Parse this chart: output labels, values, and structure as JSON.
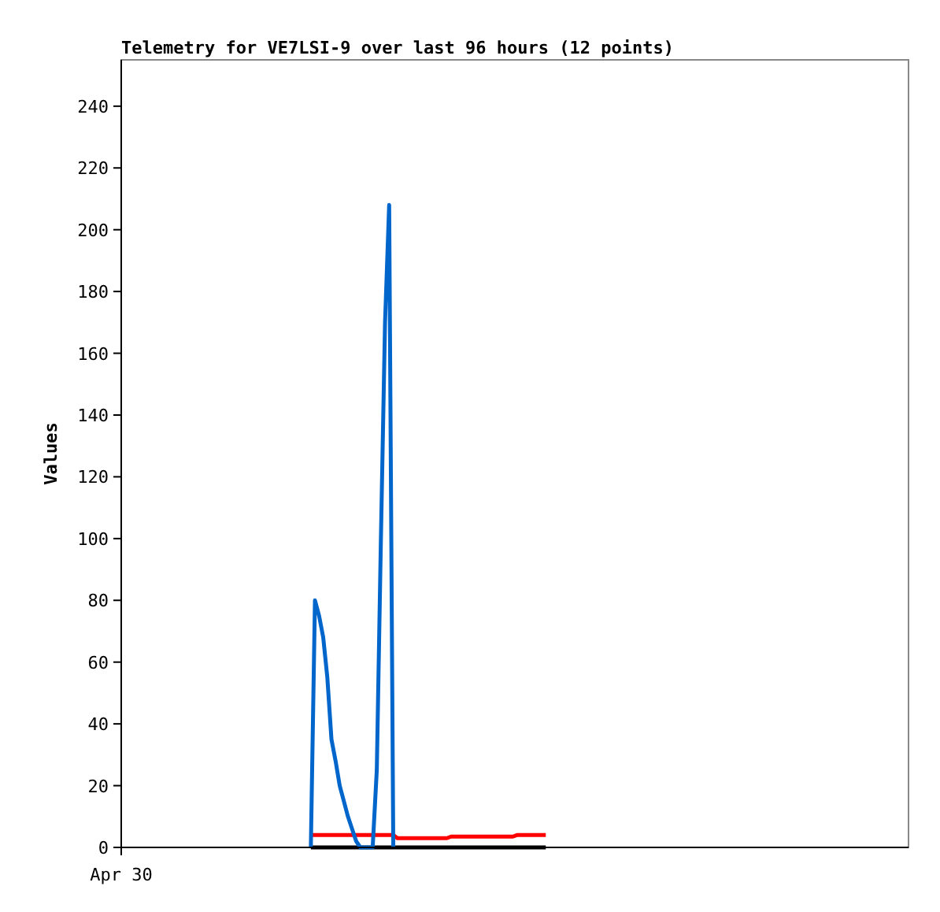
{
  "chart_data": {
    "type": "line",
    "title": "Telemetry for VE7LSI-9 over last 96 hours (12 points)",
    "ylabel": "Values",
    "categories": [
      "Apr 30",
      null,
      null,
      null,
      null,
      null,
      null,
      null,
      null,
      null,
      null,
      null,
      null,
      null,
      null,
      null,
      null,
      null,
      null,
      null,
      null,
      null,
      null,
      null,
      null,
      null,
      null,
      null,
      null,
      null,
      null,
      null,
      null,
      null,
      null,
      null,
      null,
      null,
      null,
      null,
      null,
      null,
      null,
      null,
      null,
      null,
      null,
      null,
      null,
      null,
      null,
      null,
      null,
      null,
      null,
      null,
      null,
      null,
      null,
      null,
      null,
      null,
      null,
      null,
      null,
      null,
      null,
      null,
      null,
      null,
      null,
      null,
      null,
      null,
      null,
      null,
      null,
      null,
      null,
      null,
      null,
      null,
      null,
      null,
      null,
      null,
      null,
      null,
      null,
      null,
      null,
      null,
      null,
      null,
      null,
      null,
      null,
      null,
      null,
      null,
      null,
      null,
      null,
      null,
      null,
      null,
      null,
      null,
      null,
      null,
      null,
      null,
      null,
      null,
      null,
      null,
      null,
      null,
      null,
      null,
      null,
      null,
      null,
      null,
      null,
      null,
      null,
      null,
      null,
      null,
      null,
      null,
      null,
      null,
      null,
      null,
      null,
      null,
      null,
      null,
      null,
      null,
      null,
      null,
      null,
      null,
      null,
      null,
      null,
      null,
      null,
      null,
      null,
      null,
      null,
      null,
      null,
      null,
      null,
      null,
      null,
      null,
      null,
      null,
      null,
      null,
      null,
      null,
      null,
      null,
      null,
      null,
      null,
      null,
      null,
      null,
      null,
      null,
      null,
      null,
      null,
      null,
      null,
      null,
      null,
      null,
      null,
      null,
      null,
      null,
      null,
      null
    ],
    "ylim": [
      0,
      255
    ],
    "yticks": [
      0,
      20,
      40,
      60,
      80,
      100,
      120,
      140,
      160,
      180,
      200,
      220,
      240
    ],
    "grid": false,
    "series": [
      {
        "color": "#000000",
        "values": [
          null,
          null,
          null,
          null,
          null,
          null,
          null,
          null,
          null,
          null,
          null,
          null,
          null,
          null,
          null,
          null,
          null,
          null,
          null,
          null,
          null,
          null,
          null,
          null,
          null,
          null,
          null,
          null,
          null,
          null,
          null,
          null,
          null,
          null,
          null,
          null,
          null,
          null,
          null,
          null,
          null,
          null,
          null,
          null,
          null,
          null,
          0,
          0,
          0,
          0,
          0,
          0,
          0,
          0,
          0,
          0,
          0,
          0,
          0,
          0,
          0,
          0,
          0,
          0,
          0,
          0,
          0,
          0,
          0,
          0,
          0,
          0,
          0,
          0,
          0,
          0,
          0,
          0,
          0,
          0,
          0,
          0,
          0,
          0,
          0,
          0,
          0,
          0,
          0,
          0,
          0,
          0,
          0,
          0,
          0,
          0,
          0,
          0,
          0,
          0,
          0,
          0,
          0,
          0,
          null,
          null,
          null,
          null,
          null,
          null,
          null,
          null,
          null,
          null,
          null,
          null,
          null,
          null,
          null,
          null,
          null,
          null,
          null,
          null,
          null,
          null,
          null,
          null,
          null,
          null,
          null,
          null,
          null,
          null,
          null,
          null,
          null,
          null,
          null,
          null,
          null,
          null,
          null,
          null,
          null,
          null,
          null,
          null,
          null,
          null,
          null,
          null,
          null,
          null,
          null,
          null,
          null,
          null,
          null,
          null,
          null,
          null,
          null,
          null,
          null,
          null,
          null,
          null,
          null,
          null,
          null,
          null,
          null,
          null,
          null,
          null,
          null,
          null,
          null,
          null,
          null,
          null,
          null,
          null,
          null,
          null,
          null,
          null,
          null,
          null,
          null,
          null
        ]
      },
      {
        "color": "#ff0000",
        "values": [
          null,
          null,
          null,
          null,
          null,
          null,
          null,
          null,
          null,
          null,
          null,
          null,
          null,
          null,
          null,
          null,
          null,
          null,
          null,
          null,
          null,
          null,
          null,
          null,
          null,
          null,
          null,
          null,
          null,
          null,
          null,
          null,
          null,
          null,
          null,
          null,
          null,
          null,
          null,
          null,
          null,
          null,
          null,
          null,
          null,
          null,
          4,
          4,
          4,
          4,
          4,
          4,
          4,
          4,
          4,
          4,
          4,
          4,
          4,
          4,
          4,
          4,
          4,
          4,
          4,
          4,
          4,
          3,
          3,
          3,
          3,
          3,
          3,
          3,
          3,
          3,
          3,
          3,
          3,
          3,
          3.5,
          3.5,
          3.5,
          3.5,
          3.5,
          3.5,
          3.5,
          3.5,
          3.5,
          3.5,
          3.5,
          3.5,
          3.5,
          3.5,
          3.5,
          3.5,
          4,
          4,
          4,
          4,
          4,
          4,
          4,
          4,
          null,
          null,
          null,
          null,
          null,
          null,
          null,
          null,
          null,
          null,
          null,
          null,
          null,
          null,
          null,
          null,
          null,
          null,
          null,
          null,
          null,
          null,
          null,
          null,
          null,
          null,
          null,
          null,
          null,
          null,
          null,
          null,
          null,
          null,
          null,
          null,
          null,
          null,
          null,
          null,
          null,
          null,
          null,
          null,
          null,
          null,
          null,
          null,
          null,
          null,
          null,
          null,
          null,
          null,
          null,
          null,
          null,
          null,
          null,
          null,
          null,
          null,
          null,
          null,
          null,
          null,
          null,
          null,
          null,
          null,
          null,
          null,
          null,
          null,
          null,
          null,
          null,
          null,
          null,
          null,
          null,
          null,
          null,
          null,
          null,
          null,
          null,
          null
        ]
      },
      {
        "color": "#0066cc",
        "values": [
          null,
          null,
          null,
          null,
          null,
          null,
          null,
          null,
          null,
          null,
          null,
          null,
          null,
          null,
          null,
          null,
          null,
          null,
          null,
          null,
          null,
          null,
          null,
          null,
          null,
          null,
          null,
          null,
          null,
          null,
          null,
          null,
          null,
          null,
          null,
          null,
          null,
          null,
          null,
          null,
          null,
          null,
          null,
          null,
          null,
          null,
          0,
          80,
          75,
          68,
          55,
          35,
          28,
          20,
          15,
          10,
          6,
          2,
          0,
          0,
          0,
          0,
          25,
          100,
          170,
          208,
          0,
          null,
          null,
          null,
          null,
          null,
          null,
          null,
          null,
          null,
          null,
          null,
          null,
          null,
          null,
          null,
          null,
          null,
          null,
          null,
          null,
          null,
          null,
          null,
          null,
          null,
          null,
          null,
          null,
          null,
          null,
          null,
          null,
          null,
          null,
          null,
          null,
          null,
          null,
          null,
          null,
          null,
          null,
          null,
          null,
          null,
          null,
          null,
          null,
          null,
          null,
          null,
          null,
          null,
          null,
          null,
          null,
          null,
          null,
          null,
          null,
          null,
          null,
          null,
          null,
          null,
          null,
          null,
          null,
          null,
          null,
          null,
          null,
          null,
          null,
          null,
          null,
          null,
          null,
          null,
          null,
          null,
          null,
          null,
          null,
          null,
          null,
          null,
          null,
          null,
          null,
          null,
          null,
          null,
          null,
          null,
          null,
          null,
          null,
          null,
          null,
          null,
          null,
          null,
          null,
          null,
          null,
          null,
          null,
          null,
          null,
          null,
          null,
          null,
          null,
          null,
          null,
          null,
          null,
          null,
          null,
          null,
          null,
          null,
          null,
          null
        ]
      }
    ]
  }
}
